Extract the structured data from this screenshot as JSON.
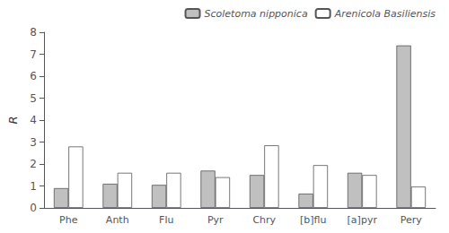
{
  "chart_data": {
    "type": "bar",
    "categories": [
      "Phe",
      "Anth",
      "Flu",
      "Pyr",
      "Chry",
      "[b]flu",
      "[a]pyr",
      "Pery"
    ],
    "series": [
      {
        "name": "Scoletoma nipponica",
        "color": "#c0c0c0",
        "values": [
          0.9,
          1.1,
          1.05,
          1.7,
          1.5,
          0.65,
          1.6,
          7.4
        ]
      },
      {
        "name": "Arenicola Basiliensis",
        "color": "#ffffff",
        "values": [
          2.8,
          1.6,
          1.6,
          1.4,
          2.85,
          1.95,
          1.5,
          0.97
        ]
      }
    ],
    "ylabel": "R",
    "ylim": [
      0,
      8
    ],
    "yticks": [
      0,
      1,
      2,
      3,
      4,
      5,
      6,
      7,
      8
    ],
    "grid": false,
    "legend": "upper right"
  }
}
